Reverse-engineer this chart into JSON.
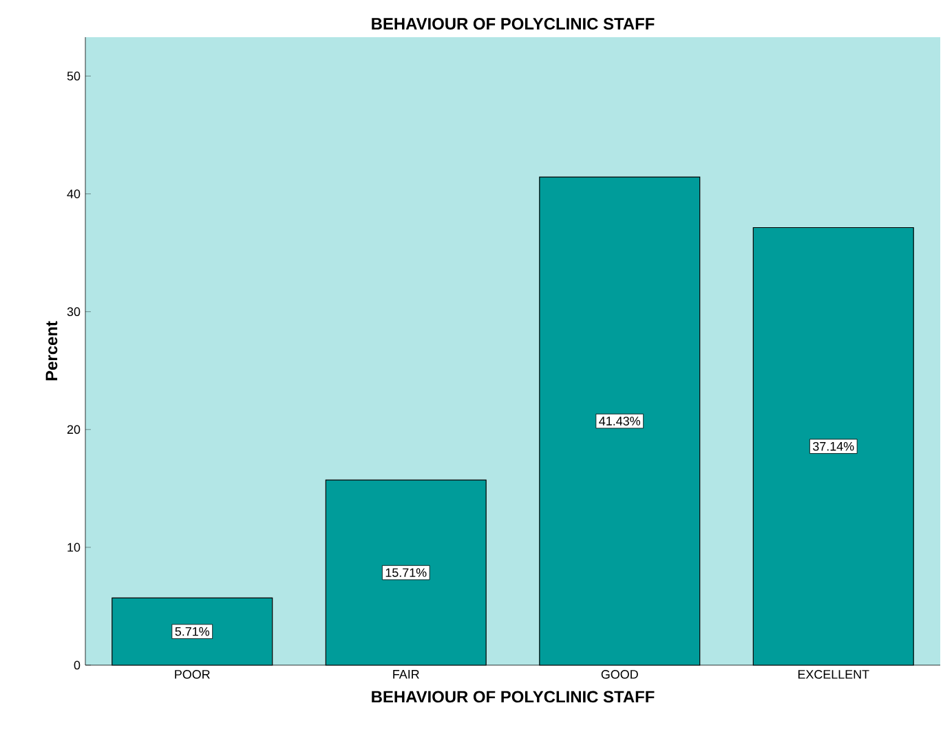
{
  "chart_data": {
    "type": "bar",
    "title": "BEHAVIOUR OF POLYCLINIC STAFF",
    "xlabel": "BEHAVIOUR OF POLYCLINIC STAFF",
    "ylabel": "Percent",
    "categories": [
      "POOR",
      "FAIR",
      "GOOD",
      "EXCELLENT"
    ],
    "values": [
      5.71,
      15.71,
      41.43,
      37.14
    ],
    "value_labels": [
      "5.71%",
      "15.71%",
      "41.43%",
      "37.14%"
    ],
    "color": "#009c9a",
    "ylim": [
      0,
      53.3
    ],
    "yticks": [
      0,
      10,
      20,
      30,
      40,
      50
    ]
  }
}
